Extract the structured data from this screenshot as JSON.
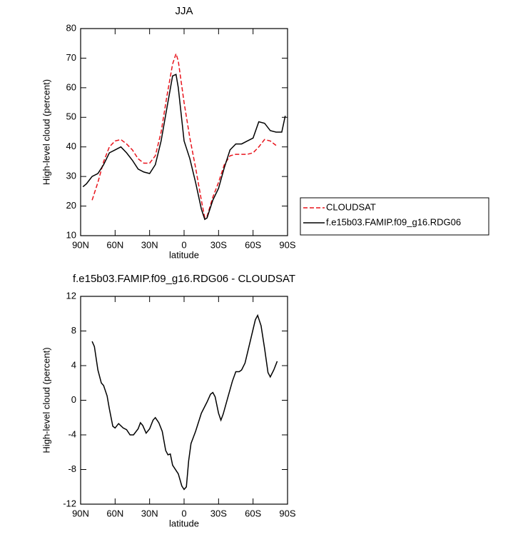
{
  "chart_data": [
    {
      "type": "line",
      "title": "JJA",
      "xlabel": "latitude",
      "ylabel": "High-level cloud (percent)",
      "x": [
        88,
        85,
        80,
        75,
        70,
        65,
        60,
        55,
        50,
        45,
        40,
        35,
        30,
        25,
        20,
        15,
        10,
        7,
        5,
        0,
        -5,
        -10,
        -15,
        -18,
        -20,
        -25,
        -30,
        -35,
        -40,
        -45,
        -50,
        -55,
        -60,
        -65,
        -70,
        -75,
        -80,
        -85,
        -88
      ],
      "xlim": [
        90,
        -90
      ],
      "xticks": [
        {
          "value": 90,
          "label": "90N"
        },
        {
          "value": 60,
          "label": "60N"
        },
        {
          "value": 30,
          "label": "30N"
        },
        0,
        {
          "value": -30,
          "label": "30S"
        },
        {
          "value": -60,
          "label": "60S"
        },
        {
          "value": -90,
          "label": "90S"
        }
      ],
      "ylim": [
        10,
        80
      ],
      "yticks": [
        10,
        20,
        30,
        40,
        50,
        60,
        70,
        80
      ],
      "legend": "outside-right",
      "series": [
        {
          "name": "CLOUDSAT",
          "color": "#e8141c",
          "line_style": "dashed",
          "values": [
            null,
            null,
            22,
            28,
            35,
            40,
            42,
            42.5,
            41,
            39,
            36,
            34.5,
            34.5,
            37,
            45,
            57,
            68,
            71.5,
            69,
            55,
            43,
            33,
            22,
            16,
            16.5,
            23,
            28,
            34,
            37,
            37.5,
            37.5,
            37.5,
            38,
            40,
            42.5,
            42,
            40.5,
            null,
            null
          ]
        },
        {
          "name": "f.e15b03.FAMIP.f09_g16.RDG06",
          "color": "#000000",
          "line_style": "solid",
          "values": [
            26.5,
            27.5,
            30,
            31,
            34,
            38,
            39,
            40,
            38,
            35.5,
            32.5,
            31.5,
            31,
            34,
            42,
            53,
            64,
            64.5,
            60,
            42,
            36,
            28,
            19,
            15.5,
            16,
            22,
            26,
            33,
            39,
            41,
            41,
            42,
            43,
            48.5,
            48,
            45.5,
            45,
            45,
            50.5
          ]
        }
      ]
    },
    {
      "type": "line",
      "title": "f.e15b03.FAMIP.f09_g16.RDG06 - CLOUDSAT",
      "xlabel": "latitude",
      "ylabel": "High-level cloud (percent)",
      "x": [
        80,
        78,
        75,
        72,
        70,
        67,
        65,
        62,
        60,
        57,
        53,
        50,
        47,
        44,
        40,
        38,
        36,
        33,
        30,
        27,
        25,
        22,
        19,
        16,
        14,
        12,
        10,
        5,
        2,
        0,
        -2,
        -4,
        -6,
        -8,
        -10,
        -15,
        -20,
        -23,
        -25,
        -27,
        -30,
        -32,
        -34,
        -38,
        -42,
        -45,
        -48,
        -50,
        -53,
        -57,
        -62,
        -64,
        -67,
        -70,
        -73,
        -75,
        -78,
        -81
      ],
      "xlim": [
        90,
        -90
      ],
      "xticks": [
        {
          "value": 90,
          "label": "90N"
        },
        {
          "value": 60,
          "label": "60N"
        },
        {
          "value": 30,
          "label": "30N"
        },
        0,
        {
          "value": -30,
          "label": "30S"
        },
        {
          "value": -60,
          "label": "60S"
        },
        {
          "value": -90,
          "label": "90S"
        }
      ],
      "ylim": [
        -12,
        12
      ],
      "yticks": [
        -12,
        -8,
        -4,
        0,
        4,
        8,
        12
      ],
      "color": "#000000",
      "values": [
        6.8,
        6.2,
        3.5,
        2,
        1.7,
        0.5,
        -1,
        -3,
        -3.2,
        -2.7,
        -3.2,
        -3.4,
        -4,
        -4,
        -3.3,
        -2.6,
        -2.9,
        -3.8,
        -3.3,
        -2.3,
        -2,
        -2.6,
        -3.6,
        -5.8,
        -6.3,
        -6.2,
        -7.5,
        -8.5,
        -9.9,
        -10.3,
        -10,
        -7,
        -5,
        -4.3,
        -3.6,
        -1.5,
        -0.2,
        0.7,
        0.9,
        0.4,
        -1.5,
        -2.3,
        -1.6,
        0.3,
        2.2,
        3.3,
        3.3,
        3.5,
        4.3,
        6.5,
        9.3,
        9.8,
        8.6,
        6,
        3.2,
        2.7,
        3.5,
        4.5
      ]
    }
  ]
}
